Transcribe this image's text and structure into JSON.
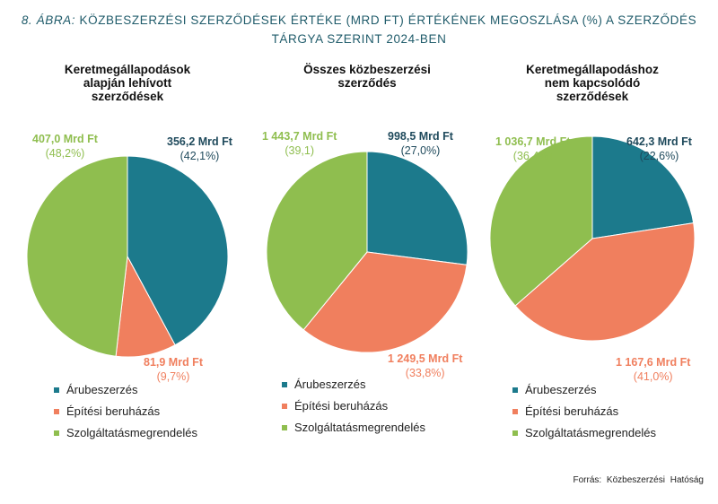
{
  "header": {
    "figure_label": "8. ábra:",
    "title_line1": "Közbeszerzési szerződések értéke (Mrd Ft) értékének megoszlása (%) a szerződés",
    "title_line2": "tárgya szerint 2024-ben"
  },
  "colors": {
    "arubeszerzes": "#1c7a8c",
    "epitesi": "#f07f5e",
    "szolgaltatas": "#8fbe4f",
    "title": "#1f5b6a",
    "value_dark": "#1f4a5c"
  },
  "legend": [
    "Árubeszerzés",
    "Építési beruházás",
    "Szolgáltatásmegrendelés"
  ],
  "source": "Forrás: Közbeszerzési Hatóság",
  "chart_data": [
    {
      "type": "pie",
      "title": "Keretmegállapodások alapján lehívott szerződések",
      "title_lines": [
        "Keretmegállapodások",
        "alapján lehívott",
        "szerződések"
      ],
      "series": [
        {
          "name": "Árubeszerzés",
          "value": 356.2,
          "percent": 42.1,
          "value_label": "356,2 Mrd Ft",
          "percent_label": "(42,1%)"
        },
        {
          "name": "Építési beruházás",
          "value": 81.9,
          "percent": 9.7,
          "value_label": "81,9 Mrd Ft",
          "percent_label": "(9,7%)"
        },
        {
          "name": "Szolgáltatásmegrendelés",
          "value": 407.0,
          "percent": 48.2,
          "value_label": "407,0 Mrd Ft",
          "percent_label": "(48,2%)"
        }
      ]
    },
    {
      "type": "pie",
      "title": "Összes közbeszerzési szerződés",
      "title_lines": [
        "Összes közbeszerzési",
        "szerződés"
      ],
      "series": [
        {
          "name": "Árubeszerzés",
          "value": 998.5,
          "percent": 27.0,
          "value_label": "998,5 Mrd Ft",
          "percent_label": "(27,0%)"
        },
        {
          "name": "Építési beruházás",
          "value": 1249.5,
          "percent": 33.8,
          "value_label": "1 249,5 Mrd Ft",
          "percent_label": "(33,8%)"
        },
        {
          "name": "Szolgáltatásmegrendelés",
          "value": 1443.7,
          "percent": 39.1,
          "value_label": "1 443,7 Mrd Ft",
          "percent_label": "(39,1)"
        }
      ]
    },
    {
      "type": "pie",
      "title": "Keretmegállapodáshoz nem kapcsolódó szerződések",
      "title_lines": [
        "Keretmegállapodáshoz",
        "nem kapcsolódó",
        "szerződések"
      ],
      "series": [
        {
          "name": "Árubeszerzés",
          "value": 642.3,
          "percent": 22.6,
          "value_label": "642,3 Mrd Ft",
          "percent_label": "(22,6%)"
        },
        {
          "name": "Építési beruházás",
          "value": 1167.6,
          "percent": 41.0,
          "value_label": "1 167,6 Mrd Ft",
          "percent_label": "(41,0%)"
        },
        {
          "name": "Szolgáltatásmegrendelés",
          "value": 1036.7,
          "percent": 36.4,
          "value_label": "1 036,7 Mrd Ft",
          "percent_label": "(36,4%)"
        }
      ]
    }
  ]
}
